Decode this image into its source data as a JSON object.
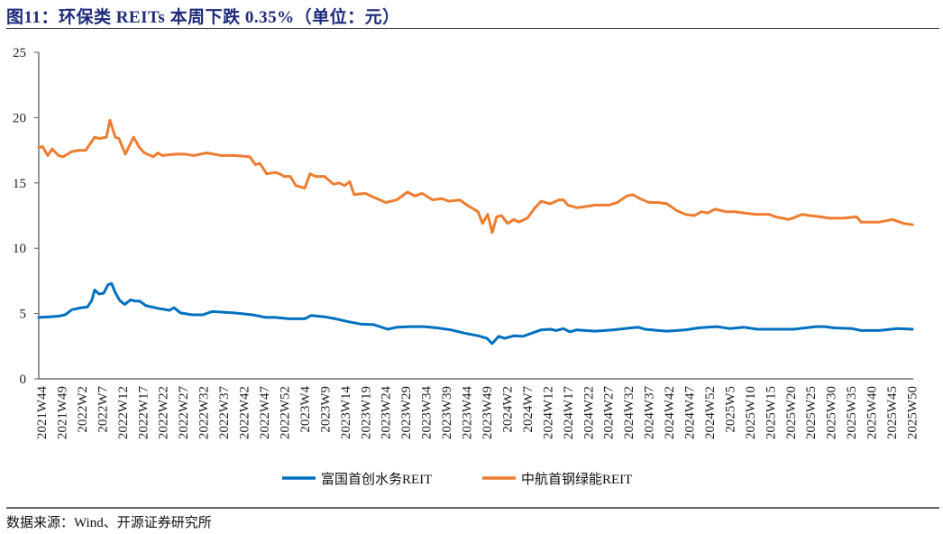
{
  "header": {
    "title": "图11：环保类 REITs 本周下跌 0.35%（单位：元）"
  },
  "footer": {
    "source": "数据来源：Wind、开源证券研究所"
  },
  "colors": {
    "series_1": "#0070c0",
    "series_2": "#ed7d31",
    "axis": "#555555",
    "title": "#1f2a7a"
  },
  "chart_data": {
    "type": "line",
    "title": "环保类 REITs 本周下跌 0.35%（单位：元）",
    "xlabel": "",
    "ylabel": "元",
    "ylim": [
      0,
      25
    ],
    "yticks": [
      0,
      5,
      10,
      15,
      20,
      25
    ],
    "grid": false,
    "legend_position": "bottom",
    "x_range_weeks": [
      0,
      216
    ],
    "categories": [
      "2021W44",
      "2021W49",
      "2022W2",
      "2022W7",
      "2022W12",
      "2022W17",
      "2022W22",
      "2022W27",
      "2022W32",
      "2022W37",
      "2022W42",
      "2022W47",
      "2022W52",
      "2023W4",
      "2023W9",
      "2023W14",
      "2023W19",
      "2023W24",
      "2023W29",
      "2023W34",
      "2023W39",
      "2023W44",
      "2023W49",
      "2024W2",
      "2024W7",
      "2024W12",
      "2024W17",
      "2024W22",
      "2024W27",
      "2024W32",
      "2024W37",
      "2024W42",
      "2024W47",
      "2024W52",
      "2025W5",
      "2025W10",
      "2025W15",
      "2025W20",
      "2025W25",
      "2025W30",
      "2025W35",
      "2025W40",
      "2025W45",
      "2025W50"
    ],
    "series": [
      {
        "name": "富国首创水务REIT",
        "color": "#0070c0",
        "values": [
          4.7,
          4.8,
          5.4,
          6.6,
          6.5,
          5.9,
          5.4,
          4.95,
          5.05,
          5.1,
          4.95,
          4.7,
          4.6,
          4.65,
          4.8,
          4.5,
          4.2,
          3.9,
          4.0,
          3.95,
          3.85,
          3.6,
          3.2,
          3.2,
          3.5,
          3.8,
          3.7,
          3.65,
          3.8,
          3.9,
          3.8,
          3.65,
          3.75,
          3.9,
          3.95,
          3.9,
          3.85,
          3.8,
          3.8,
          4.0,
          3.9,
          3.7,
          3.75,
          3.8
        ],
        "points": [
          [
            0,
            4.7
          ],
          [
            2.7,
            4.75
          ],
          [
            4.9,
            4.8
          ],
          [
            6.5,
            4.9
          ],
          [
            8.2,
            5.3
          ],
          [
            10.5,
            5.45
          ],
          [
            12,
            5.5
          ],
          [
            13.1,
            6.0
          ],
          [
            13.8,
            6.8
          ],
          [
            14.9,
            6.5
          ],
          [
            16,
            6.55
          ],
          [
            17.1,
            7.2
          ],
          [
            18,
            7.3
          ],
          [
            18.9,
            6.6
          ],
          [
            20,
            6.0
          ],
          [
            21.2,
            5.7
          ],
          [
            22.7,
            6.05
          ],
          [
            23.8,
            5.95
          ],
          [
            24.9,
            5.95
          ],
          [
            26.5,
            5.6
          ],
          [
            29.4,
            5.4
          ],
          [
            32.3,
            5.25
          ],
          [
            33.4,
            5.45
          ],
          [
            35,
            5.05
          ],
          [
            37.9,
            4.9
          ],
          [
            40.5,
            4.9
          ],
          [
            42.8,
            5.15
          ],
          [
            46.1,
            5.1
          ],
          [
            48.3,
            5.05
          ],
          [
            52.8,
            4.9
          ],
          [
            56.1,
            4.7
          ],
          [
            58.4,
            4.7
          ],
          [
            61.7,
            4.6
          ],
          [
            65.7,
            4.6
          ],
          [
            67.3,
            4.85
          ],
          [
            70.6,
            4.75
          ],
          [
            73.3,
            4.6
          ],
          [
            76.1,
            4.4
          ],
          [
            79.5,
            4.2
          ],
          [
            82.8,
            4.15
          ],
          [
            86.2,
            3.8
          ],
          [
            88.4,
            3.95
          ],
          [
            91.8,
            4.0
          ],
          [
            95.1,
            4.0
          ],
          [
            98.4,
            3.9
          ],
          [
            101.8,
            3.75
          ],
          [
            105.1,
            3.5
          ],
          [
            108.5,
            3.3
          ],
          [
            110.7,
            3.1
          ],
          [
            112,
            2.7
          ],
          [
            113.6,
            3.25
          ],
          [
            115.1,
            3.1
          ],
          [
            117.4,
            3.3
          ],
          [
            119.6,
            3.25
          ],
          [
            121.8,
            3.5
          ],
          [
            124.1,
            3.75
          ],
          [
            126.3,
            3.8
          ],
          [
            127.8,
            3.7
          ],
          [
            129.6,
            3.85
          ],
          [
            131.2,
            3.6
          ],
          [
            132.9,
            3.75
          ],
          [
            137.4,
            3.65
          ],
          [
            141.8,
            3.75
          ],
          [
            146.3,
            3.9
          ],
          [
            148.1,
            3.95
          ],
          [
            149.7,
            3.8
          ],
          [
            153,
            3.7
          ],
          [
            155.2,
            3.65
          ],
          [
            159.7,
            3.75
          ],
          [
            163,
            3.9
          ],
          [
            165.3,
            3.95
          ],
          [
            167.5,
            4.0
          ],
          [
            170.8,
            3.85
          ],
          [
            174.2,
            3.95
          ],
          [
            177.5,
            3.8
          ],
          [
            182,
            3.8
          ],
          [
            186.4,
            3.8
          ],
          [
            192,
            4.0
          ],
          [
            194.2,
            4.0
          ],
          [
            196.4,
            3.9
          ],
          [
            200.9,
            3.85
          ],
          [
            203.1,
            3.7
          ],
          [
            207.6,
            3.7
          ],
          [
            212.1,
            3.85
          ],
          [
            215.8,
            3.8
          ]
        ]
      },
      {
        "name": "中航首钢绿能REIT",
        "color": "#ed7d31",
        "values": [
          17.7,
          17.0,
          17.5,
          18.4,
          18.5,
          18.0,
          17.2,
          17.2,
          17.2,
          17.1,
          17.0,
          15.9,
          15.5,
          14.7,
          15.5,
          15.0,
          14.2,
          13.6,
          14.2,
          13.8,
          13.7,
          13.0,
          11.9,
          12.2,
          12.0,
          13.5,
          13.6,
          13.2,
          13.3,
          14.0,
          13.5,
          13.4,
          12.6,
          12.8,
          12.9,
          12.8,
          12.7,
          12.5,
          12.3,
          12.5,
          12.3,
          12.3,
          12.1,
          11.8
        ],
        "points": [
          [
            0,
            17.7
          ],
          [
            0.9,
            17.8
          ],
          [
            2.2,
            17.1
          ],
          [
            3.3,
            17.6
          ],
          [
            4.9,
            17.1
          ],
          [
            6,
            17.0
          ],
          [
            8.2,
            17.4
          ],
          [
            10,
            17.5
          ],
          [
            11.6,
            17.5
          ],
          [
            13.8,
            18.5
          ],
          [
            14.9,
            18.4
          ],
          [
            16.7,
            18.5
          ],
          [
            17.6,
            19.8
          ],
          [
            18.9,
            18.5
          ],
          [
            19.8,
            18.4
          ],
          [
            21.4,
            17.2
          ],
          [
            23.4,
            18.5
          ],
          [
            24.9,
            17.7
          ],
          [
            26.1,
            17.3
          ],
          [
            28.3,
            17.0
          ],
          [
            29.4,
            17.3
          ],
          [
            30.5,
            17.1
          ],
          [
            33.9,
            17.2
          ],
          [
            36.1,
            17.2
          ],
          [
            38.3,
            17.1
          ],
          [
            41.6,
            17.3
          ],
          [
            45,
            17.1
          ],
          [
            48.3,
            17.1
          ],
          [
            52.1,
            17.0
          ],
          [
            53.5,
            16.4
          ],
          [
            54.6,
            16.5
          ],
          [
            56.3,
            15.7
          ],
          [
            58.4,
            15.8
          ],
          [
            59.5,
            15.7
          ],
          [
            60.6,
            15.5
          ],
          [
            62.1,
            15.5
          ],
          [
            63.5,
            14.8
          ],
          [
            65.7,
            14.6
          ],
          [
            67,
            15.7
          ],
          [
            68.4,
            15.5
          ],
          [
            70.6,
            15.5
          ],
          [
            72.8,
            14.9
          ],
          [
            74.2,
            15.0
          ],
          [
            75.5,
            14.8
          ],
          [
            76.8,
            15.1
          ],
          [
            77.9,
            14.1
          ],
          [
            80.6,
            14.2
          ],
          [
            82.8,
            13.9
          ],
          [
            85.7,
            13.5
          ],
          [
            88.4,
            13.7
          ],
          [
            91.1,
            14.3
          ],
          [
            92.9,
            14.0
          ],
          [
            94.7,
            14.2
          ],
          [
            97.3,
            13.7
          ],
          [
            99.6,
            13.8
          ],
          [
            101.3,
            13.6
          ],
          [
            104,
            13.7
          ],
          [
            105.8,
            13.3
          ],
          [
            108.5,
            12.8
          ],
          [
            109.6,
            11.9
          ],
          [
            110.9,
            12.6
          ],
          [
            112,
            11.2
          ],
          [
            113.1,
            12.4
          ],
          [
            114.3,
            12.5
          ],
          [
            115.8,
            11.9
          ],
          [
            117.4,
            12.2
          ],
          [
            118.5,
            12.0
          ],
          [
            120.7,
            12.3
          ],
          [
            122.3,
            13.0
          ],
          [
            124.1,
            13.6
          ],
          [
            126.3,
            13.4
          ],
          [
            128.5,
            13.7
          ],
          [
            129.6,
            13.7
          ],
          [
            130.7,
            13.3
          ],
          [
            133,
            13.1
          ],
          [
            135.2,
            13.2
          ],
          [
            137.4,
            13.3
          ],
          [
            140.8,
            13.3
          ],
          [
            142.9,
            13.5
          ],
          [
            145.2,
            14.0
          ],
          [
            146.7,
            14.1
          ],
          [
            148.5,
            13.8
          ],
          [
            150.8,
            13.5
          ],
          [
            153,
            13.5
          ],
          [
            155.2,
            13.4
          ],
          [
            157.5,
            12.9
          ],
          [
            159.7,
            12.6
          ],
          [
            161.9,
            12.5
          ],
          [
            163.7,
            12.8
          ],
          [
            165.3,
            12.7
          ],
          [
            167,
            13.0
          ],
          [
            169.7,
            12.8
          ],
          [
            171.9,
            12.8
          ],
          [
            174.2,
            12.7
          ],
          [
            177.1,
            12.6
          ],
          [
            180.4,
            12.6
          ],
          [
            182,
            12.4
          ],
          [
            185.3,
            12.2
          ],
          [
            188.6,
            12.6
          ],
          [
            190.4,
            12.5
          ],
          [
            193.1,
            12.4
          ],
          [
            195.3,
            12.3
          ],
          [
            198.7,
            12.3
          ],
          [
            202,
            12.4
          ],
          [
            203.1,
            12.0
          ],
          [
            207.6,
            12.0
          ],
          [
            210.9,
            12.2
          ],
          [
            213.6,
            11.9
          ],
          [
            215.8,
            11.8
          ]
        ]
      }
    ]
  },
  "legend": {
    "items": [
      {
        "label": "富国首创水务REIT"
      },
      {
        "label": "中航首钢绿能REIT"
      }
    ]
  }
}
